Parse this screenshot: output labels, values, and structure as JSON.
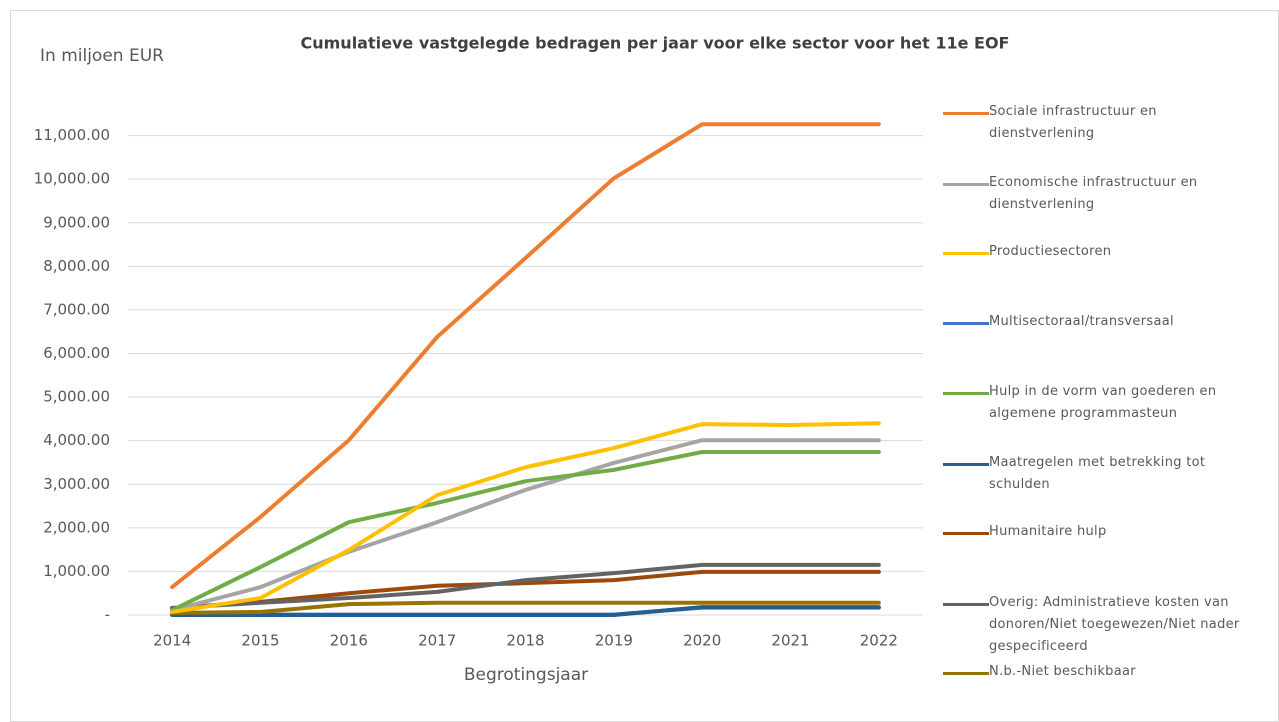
{
  "chart_data": {
    "type": "line",
    "title": "Cumulatieve vastgelegde bedragen per jaar voor elke sector voor het 11e EOF",
    "y_axis_label": "In miljoen EUR",
    "x_axis_label": "Begrotingsjaar",
    "categories": [
      "2014",
      "2015",
      "2016",
      "2017",
      "2018",
      "2019",
      "2020",
      "2021",
      "2022"
    ],
    "ylim": [
      0,
      12000
    ],
    "yticks": [
      {
        "value": 0,
        "label": "-"
      },
      {
        "value": 1000,
        "label": "1,000.00"
      },
      {
        "value": 2000,
        "label": "2,000.00"
      },
      {
        "value": 3000,
        "label": "3,000.00"
      },
      {
        "value": 4000,
        "label": "4,000.00"
      },
      {
        "value": 5000,
        "label": "5,000.00"
      },
      {
        "value": 6000,
        "label": "6,000.00"
      },
      {
        "value": 7000,
        "label": "7,000.00"
      },
      {
        "value": 8000,
        "label": "8,000.00"
      },
      {
        "value": 9000,
        "label": "9,000.00"
      },
      {
        "value": 10000,
        "label": "10,000.00"
      },
      {
        "value": 11000,
        "label": "11,000.00"
      }
    ],
    "grid": true,
    "legend": "right",
    "series": [
      {
        "name": "Sociale infrastructuur en dienstverlening",
        "color": "#ed7d31",
        "values": [
          640,
          2250,
          4010,
          6380,
          8190,
          10020,
          11260,
          11260,
          11260
        ]
      },
      {
        "name": "Economische infrastructuur en dienstverlening",
        "color": "#a5a5a5",
        "values": [
          110,
          640,
          1450,
          2130,
          2870,
          3490,
          4010,
          4010,
          4010
        ]
      },
      {
        "name": "Productiesectoren",
        "color": "#ffc000",
        "values": [
          70,
          390,
          1490,
          2750,
          3390,
          3830,
          4380,
          4360,
          4400
        ]
      },
      {
        "name": "Multisectoraal/transversaal",
        "color": "#4472c4",
        "values": [
          10,
          10,
          10,
          10,
          10,
          10,
          170,
          170,
          170
        ]
      },
      {
        "name": "Hulp in de vorm van goederen en algemene programmasteun",
        "color": "#70ad47",
        "values": [
          110,
          1100,
          2130,
          2570,
          3070,
          3330,
          3740,
          3740,
          3740
        ]
      },
      {
        "name": "Maatregelen met betrekking tot schulden",
        "color": "#255e91",
        "values": [
          0,
          0,
          0,
          0,
          0,
          0,
          180,
          180,
          180
        ]
      },
      {
        "name": "Humanitaire hulp",
        "color": "#9e480e",
        "values": [
          160,
          300,
          500,
          670,
          730,
          800,
          990,
          990,
          990
        ]
      },
      {
        "name": "Overig: Administratieve kosten van donoren/Niet toegewezen/Niet nader gespecificeerd",
        "color": "#636363",
        "values": [
          160,
          280,
          390,
          530,
          800,
          960,
          1150,
          1150,
          1150
        ]
      },
      {
        "name": "N.b.-Niet beschikbaar",
        "color": "#997300",
        "values": [
          50,
          70,
          250,
          280,
          280,
          280,
          280,
          280,
          280
        ]
      }
    ]
  }
}
